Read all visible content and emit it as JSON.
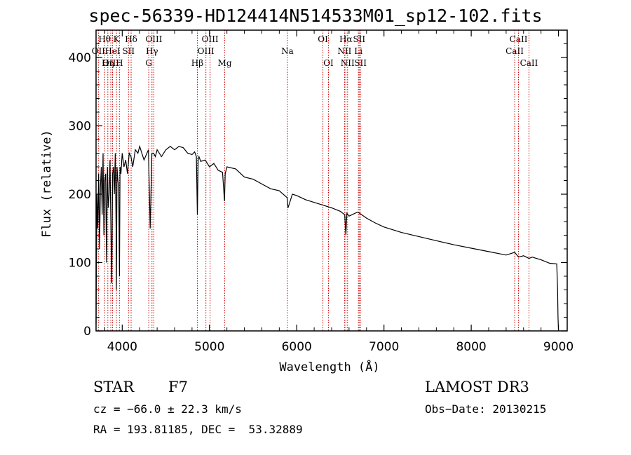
{
  "chart_data": {
    "type": "line",
    "title": "spec-56339-HD124414N514533M01_sp12-102.fits",
    "xlabel": "Wavelength (Å)",
    "ylabel": "Flux (relative)",
    "xlim": [
      3700,
      9100
    ],
    "ylim": [
      0,
      440
    ],
    "x_ticks": [
      {
        "value": 4000,
        "label": "4000"
      },
      {
        "value": 5000,
        "label": "5000"
      },
      {
        "value": 6000,
        "label": "6000"
      },
      {
        "value": 7000,
        "label": "7000"
      },
      {
        "value": 8000,
        "label": "8000"
      },
      {
        "value": 9000,
        "label": "9000"
      }
    ],
    "y_ticks": [
      {
        "value": 0,
        "label": "0"
      },
      {
        "value": 100,
        "label": "100"
      },
      {
        "value": 200,
        "label": "200"
      },
      {
        "value": 300,
        "label": "300"
      },
      {
        "value": 400,
        "label": "400"
      }
    ],
    "series": [
      {
        "name": "flux",
        "x": [
          3700,
          3710,
          3720,
          3730,
          3740,
          3750,
          3760,
          3770,
          3780,
          3790,
          3800,
          3810,
          3820,
          3830,
          3840,
          3850,
          3860,
          3870,
          3880,
          3890,
          3900,
          3910,
          3920,
          3930,
          3933,
          3940,
          3950,
          3960,
          3968,
          3975,
          3985,
          4000,
          4020,
          4040,
          4060,
          4080,
          4100,
          4120,
          4150,
          4180,
          4200,
          4250,
          4300,
          4320,
          4340,
          4360,
          4380,
          4400,
          4450,
          4500,
          4550,
          4600,
          4650,
          4700,
          4750,
          4800,
          4830,
          4850,
          4861,
          4870,
          4880,
          4900,
          4950,
          5000,
          5050,
          5100,
          5150,
          5172,
          5180,
          5200,
          5300,
          5400,
          5500,
          5600,
          5700,
          5800,
          5890,
          5900,
          5950,
          6000,
          6100,
          6200,
          6300,
          6400,
          6500,
          6550,
          6563,
          6575,
          6600,
          6700,
          6800,
          6900,
          7000,
          7200,
          7400,
          7600,
          7800,
          8000,
          8200,
          8400,
          8498,
          8542,
          8600,
          8662,
          8700,
          8800,
          8900,
          8980,
          8990,
          8995,
          9000
        ],
        "y": [
          10,
          200,
          150,
          230,
          120,
          210,
          240,
          170,
          260,
          140,
          220,
          230,
          100,
          240,
          180,
          200,
          250,
          150,
          70,
          230,
          240,
          200,
          260,
          150,
          60,
          240,
          220,
          210,
          80,
          240,
          230,
          260,
          240,
          250,
          230,
          260,
          255,
          240,
          265,
          260,
          270,
          250,
          265,
          150,
          260,
          260,
          255,
          265,
          255,
          265,
          270,
          265,
          270,
          268,
          260,
          258,
          262,
          255,
          170,
          250,
          255,
          248,
          250,
          240,
          245,
          235,
          232,
          190,
          230,
          240,
          237,
          225,
          222,
          215,
          208,
          205,
          195,
          180,
          200,
          198,
          192,
          188,
          184,
          180,
          175,
          170,
          140,
          172,
          168,
          174,
          165,
          158,
          152,
          144,
          138,
          132,
          126,
          121,
          116,
          111,
          115,
          108,
          110,
          106,
          108,
          104,
          99,
          98,
          60,
          20,
          0
        ]
      }
    ],
    "emission_lines": [
      {
        "wavelength": 3727,
        "label": "OII",
        "row": 2
      },
      {
        "wavelength": 3798,
        "label": "Hθ",
        "row": 1
      },
      {
        "wavelength": 3835,
        "label": "Hη",
        "row": 3
      },
      {
        "wavelength": 3869,
        "label": "OIII",
        "row": 3
      },
      {
        "wavelength": 3889,
        "label": "HeI",
        "row": 2
      },
      {
        "wavelength": 3934,
        "label": "K",
        "row": 1
      },
      {
        "wavelength": 3968,
        "label": "H",
        "row": 3
      },
      {
        "wavelength": 4072,
        "label": "SII",
        "row": 2
      },
      {
        "wavelength": 4102,
        "label": "Hδ",
        "row": 1
      },
      {
        "wavelength": 4304,
        "label": "G",
        "row": 3
      },
      {
        "wavelength": 4341,
        "label": "Hγ",
        "row": 2
      },
      {
        "wavelength": 4363,
        "label": "OIII",
        "row": 1
      },
      {
        "wavelength": 4861,
        "label": "Hβ",
        "row": 3
      },
      {
        "wavelength": 4959,
        "label": "OIII",
        "row": 2
      },
      {
        "wavelength": 5007,
        "label": "OIII",
        "row": 1
      },
      {
        "wavelength": 5175,
        "label": "Mg",
        "row": 3
      },
      {
        "wavelength": 5893,
        "label": "Na",
        "row": 2
      },
      {
        "wavelength": 6300,
        "label": "OI",
        "row": 1
      },
      {
        "wavelength": 6364,
        "label": "OI",
        "row": 3
      },
      {
        "wavelength": 6548,
        "label": "NII",
        "row": 2
      },
      {
        "wavelength": 6563,
        "label": "Hα",
        "row": 1
      },
      {
        "wavelength": 6583,
        "label": "NII",
        "row": 3
      },
      {
        "wavelength": 6707,
        "label": "Li",
        "row": 2
      },
      {
        "wavelength": 6716,
        "label": "SII",
        "row": 1
      },
      {
        "wavelength": 6731,
        "label": "SII",
        "row": 3
      },
      {
        "wavelength": 8498,
        "label": "CaII",
        "row": 2
      },
      {
        "wavelength": 8542,
        "label": "CaII",
        "row": 1
      },
      {
        "wavelength": 8662,
        "label": "CaII",
        "row": 3
      }
    ]
  },
  "info": {
    "class": "STAR",
    "subclass": "F7",
    "survey": "LAMOST DR3",
    "cz": "cz = −66.0 ± 22.3 km/s",
    "obs_date": "Obs−Date: 20130215",
    "coords": "RA = 193.81185, DEC =  53.32889"
  },
  "colors": {
    "line": "#000000",
    "marker": "#cc0000",
    "background": "#ffffff"
  }
}
